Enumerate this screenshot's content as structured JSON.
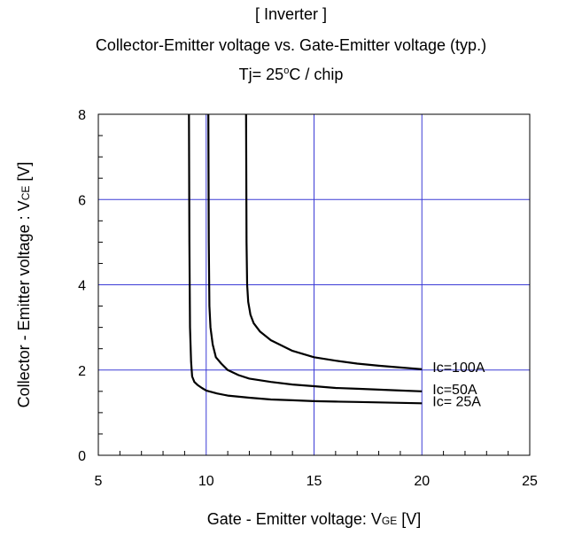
{
  "chart_data": {
    "type": "line",
    "title": "[ Inverter ]",
    "subtitle": "Collector-Emitter voltage  vs. Gate-Emitter voltage (typ.)",
    "condition": {
      "prefix": "Tj= 25",
      "sup": "o",
      "suffix": "C / chip"
    },
    "xlabel": {
      "main": "Gate - Emitter voltage: V",
      "sub": "GE",
      "unit": " [V]"
    },
    "ylabel": {
      "main": "Collector - Emitter voltage : V",
      "sub": "CE",
      "unit": " [V]"
    },
    "xlim": [
      5,
      25
    ],
    "ylim": [
      0,
      8
    ],
    "xticks": [
      5,
      10,
      15,
      20,
      25
    ],
    "yticks": [
      0,
      2,
      4,
      6,
      8
    ],
    "grid": true,
    "grid_color": "#3b3bd6",
    "line_color": "#000000",
    "series": [
      {
        "name": "Ic=100A",
        "x": [
          11.85,
          11.87,
          11.9,
          11.95,
          12.05,
          12.2,
          12.5,
          13.0,
          14.0,
          15.0,
          16.0,
          17.0,
          18.0,
          19.0,
          20.0
        ],
        "y": [
          8.0,
          5.0,
          4.0,
          3.6,
          3.3,
          3.1,
          2.9,
          2.7,
          2.45,
          2.3,
          2.22,
          2.15,
          2.1,
          2.06,
          2.02
        ]
      },
      {
        "name": "Ic=50A",
        "x": [
          10.1,
          10.12,
          10.15,
          10.2,
          10.3,
          10.45,
          10.7,
          11.0,
          11.5,
          12.0,
          13.0,
          14.0,
          15.0,
          16.0,
          17.0,
          18.0,
          19.0,
          20.0
        ],
        "y": [
          8.0,
          5.0,
          3.5,
          3.0,
          2.6,
          2.3,
          2.15,
          2.0,
          1.88,
          1.8,
          1.72,
          1.66,
          1.62,
          1.58,
          1.56,
          1.54,
          1.52,
          1.5
        ]
      },
      {
        "name": "Ic= 25A",
        "x": [
          9.2,
          9.22,
          9.25,
          9.3,
          9.35,
          9.45,
          9.6,
          9.8,
          10.0,
          10.5,
          11.0,
          12.0,
          13.0,
          14.0,
          15.0,
          16.0,
          17.0,
          18.0,
          19.0,
          20.0
        ],
        "y": [
          8.0,
          5.0,
          3.0,
          2.2,
          1.85,
          1.72,
          1.65,
          1.58,
          1.52,
          1.45,
          1.4,
          1.35,
          1.31,
          1.29,
          1.27,
          1.26,
          1.25,
          1.24,
          1.23,
          1.22
        ]
      }
    ]
  }
}
